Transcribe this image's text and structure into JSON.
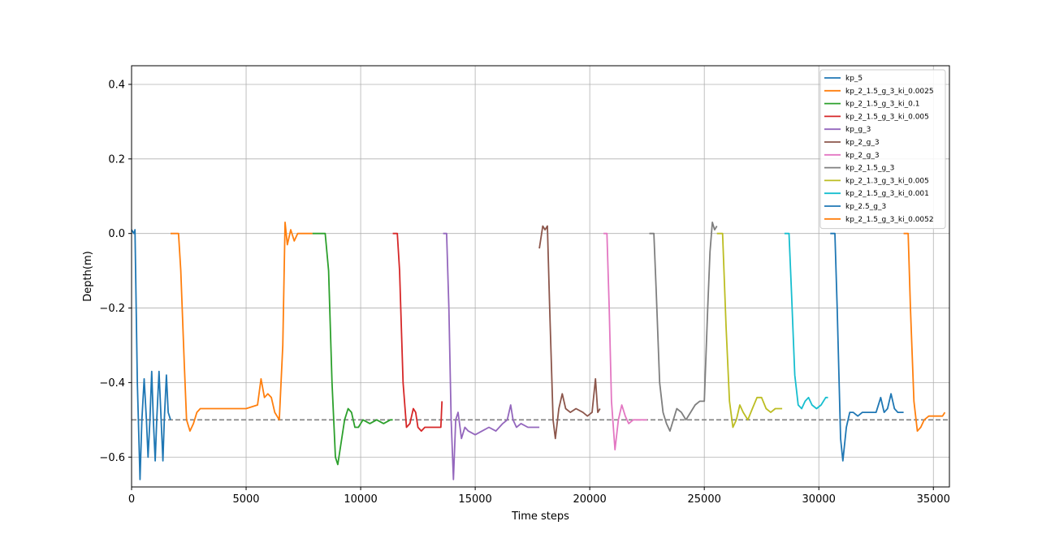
{
  "chart_data": {
    "type": "line",
    "title": "",
    "xlabel": "Time steps",
    "ylabel": "Depth(m)",
    "xlim": [
      0,
      35700
    ],
    "ylim": [
      -0.68,
      0.45
    ],
    "xticks": [
      0,
      5000,
      10000,
      15000,
      20000,
      25000,
      30000,
      35000
    ],
    "yticks": [
      0.4,
      0.2,
      0.0,
      -0.2,
      -0.4,
      -0.6
    ],
    "xtick_labels": [
      "0",
      "5000",
      "10000",
      "15000",
      "20000",
      "25000",
      "30000",
      "35000"
    ],
    "ytick_labels": [
      "0.4",
      "0.2",
      "0.0",
      "−0.2",
      "−0.4",
      "−0.6"
    ],
    "grid": true,
    "legend_position": "top-right",
    "reference_line": {
      "y": -0.5,
      "style": "dashed",
      "color": "#808080"
    },
    "series": [
      {
        "name": "kp_5",
        "color": "#1f77b4",
        "points": [
          [
            0,
            0.01
          ],
          [
            100,
            0.0
          ],
          [
            150,
            0.01
          ],
          [
            250,
            -0.4
          ],
          [
            370,
            -0.66
          ],
          [
            450,
            -0.5
          ],
          [
            550,
            -0.39
          ],
          [
            650,
            -0.5
          ],
          [
            720,
            -0.6
          ],
          [
            800,
            -0.5
          ],
          [
            880,
            -0.37
          ],
          [
            950,
            -0.5
          ],
          [
            1030,
            -0.61
          ],
          [
            1100,
            -0.5
          ],
          [
            1200,
            -0.37
          ],
          [
            1290,
            -0.5
          ],
          [
            1370,
            -0.61
          ],
          [
            1430,
            -0.5
          ],
          [
            1520,
            -0.38
          ],
          [
            1600,
            -0.48
          ],
          [
            1700,
            -0.5
          ]
        ]
      },
      {
        "name": "kp_2_1.5_g_3_ki_0.0025",
        "color": "#ff7f0e",
        "points": [
          [
            1700,
            0.0
          ],
          [
            1850,
            0.0
          ],
          [
            2050,
            0.0
          ],
          [
            2150,
            -0.1
          ],
          [
            2300,
            -0.35
          ],
          [
            2400,
            -0.5
          ],
          [
            2550,
            -0.53
          ],
          [
            2700,
            -0.51
          ],
          [
            2850,
            -0.48
          ],
          [
            3000,
            -0.47
          ],
          [
            3500,
            -0.47
          ],
          [
            4000,
            -0.47
          ],
          [
            4500,
            -0.47
          ],
          [
            5000,
            -0.47
          ],
          [
            5500,
            -0.46
          ],
          [
            5650,
            -0.39
          ],
          [
            5800,
            -0.44
          ],
          [
            5950,
            -0.43
          ],
          [
            6100,
            -0.44
          ],
          [
            6250,
            -0.48
          ],
          [
            6450,
            -0.5
          ],
          [
            6600,
            -0.3
          ],
          [
            6700,
            0.03
          ],
          [
            6800,
            -0.03
          ],
          [
            6950,
            0.01
          ],
          [
            7100,
            -0.02
          ],
          [
            7250,
            0.0
          ],
          [
            7500,
            0.0
          ],
          [
            7700,
            0.0
          ],
          [
            7900,
            0.0
          ]
        ]
      },
      {
        "name": "kp_2_1.5_g_3_ki_0.1",
        "color": "#2ca02c",
        "points": [
          [
            7900,
            0.0
          ],
          [
            8200,
            0.0
          ],
          [
            8450,
            0.0
          ],
          [
            8600,
            -0.1
          ],
          [
            8750,
            -0.4
          ],
          [
            8900,
            -0.6
          ],
          [
            9000,
            -0.62
          ],
          [
            9150,
            -0.56
          ],
          [
            9300,
            -0.5
          ],
          [
            9450,
            -0.47
          ],
          [
            9600,
            -0.48
          ],
          [
            9750,
            -0.52
          ],
          [
            9900,
            -0.52
          ],
          [
            10100,
            -0.5
          ],
          [
            10400,
            -0.51
          ],
          [
            10700,
            -0.5
          ],
          [
            11000,
            -0.51
          ],
          [
            11300,
            -0.5
          ],
          [
            11400,
            -0.5
          ]
        ]
      },
      {
        "name": "kp_2_1.5_g_3_ki_0.005",
        "color": "#d62728",
        "points": [
          [
            11400,
            0.0
          ],
          [
            11600,
            0.0
          ],
          [
            11700,
            -0.1
          ],
          [
            11850,
            -0.4
          ],
          [
            12000,
            -0.52
          ],
          [
            12150,
            -0.51
          ],
          [
            12300,
            -0.47
          ],
          [
            12400,
            -0.48
          ],
          [
            12500,
            -0.52
          ],
          [
            12650,
            -0.53
          ],
          [
            12800,
            -0.52
          ],
          [
            13000,
            -0.52
          ],
          [
            13300,
            -0.52
          ],
          [
            13500,
            -0.52
          ],
          [
            13550,
            -0.45
          ]
        ]
      },
      {
        "name": "kp_g_3",
        "color": "#9467bd",
        "points": [
          [
            13600,
            0.0
          ],
          [
            13750,
            0.0
          ],
          [
            13850,
            -0.2
          ],
          [
            13950,
            -0.5
          ],
          [
            14050,
            -0.66
          ],
          [
            14150,
            -0.5
          ],
          [
            14250,
            -0.48
          ],
          [
            14400,
            -0.55
          ],
          [
            14550,
            -0.52
          ],
          [
            14700,
            -0.53
          ],
          [
            15000,
            -0.54
          ],
          [
            15300,
            -0.53
          ],
          [
            15600,
            -0.52
          ],
          [
            15900,
            -0.53
          ],
          [
            16200,
            -0.51
          ],
          [
            16400,
            -0.5
          ],
          [
            16550,
            -0.46
          ],
          [
            16650,
            -0.5
          ],
          [
            16800,
            -0.52
          ],
          [
            17000,
            -0.51
          ],
          [
            17300,
            -0.52
          ],
          [
            17600,
            -0.52
          ],
          [
            17800,
            -0.52
          ]
        ]
      },
      {
        "name": "kp_2_g_3",
        "color": "#8c564b",
        "points": [
          [
            17800,
            -0.04
          ],
          [
            17950,
            0.02
          ],
          [
            18050,
            0.01
          ],
          [
            18150,
            0.02
          ],
          [
            18250,
            -0.2
          ],
          [
            18400,
            -0.5
          ],
          [
            18500,
            -0.55
          ],
          [
            18650,
            -0.47
          ],
          [
            18800,
            -0.43
          ],
          [
            18950,
            -0.47
          ],
          [
            19150,
            -0.48
          ],
          [
            19400,
            -0.47
          ],
          [
            19700,
            -0.48
          ],
          [
            19900,
            -0.49
          ],
          [
            20100,
            -0.48
          ],
          [
            20250,
            -0.39
          ],
          [
            20350,
            -0.48
          ],
          [
            20450,
            -0.47
          ]
        ]
      },
      {
        "name": "kp_2_g_3",
        "color": "#e377c2",
        "points": [
          [
            20600,
            0.0
          ],
          [
            20750,
            0.0
          ],
          [
            20850,
            -0.2
          ],
          [
            20950,
            -0.45
          ],
          [
            21100,
            -0.58
          ],
          [
            21250,
            -0.5
          ],
          [
            21400,
            -0.46
          ],
          [
            21550,
            -0.49
          ],
          [
            21700,
            -0.51
          ],
          [
            21900,
            -0.5
          ],
          [
            22100,
            -0.5
          ],
          [
            22300,
            -0.5
          ],
          [
            22500,
            -0.5
          ]
        ]
      },
      {
        "name": "kp_2_1.5_g_3",
        "color": "#7f7f7f",
        "points": [
          [
            22600,
            0.0
          ],
          [
            22800,
            0.0
          ],
          [
            22900,
            -0.15
          ],
          [
            23050,
            -0.4
          ],
          [
            23200,
            -0.48
          ],
          [
            23350,
            -0.51
          ],
          [
            23500,
            -0.53
          ],
          [
            23650,
            -0.5
          ],
          [
            23800,
            -0.47
          ],
          [
            24000,
            -0.48
          ],
          [
            24200,
            -0.5
          ],
          [
            24400,
            -0.48
          ],
          [
            24600,
            -0.46
          ],
          [
            24800,
            -0.45
          ],
          [
            25000,
            -0.45
          ],
          [
            25150,
            -0.2
          ],
          [
            25250,
            -0.05
          ],
          [
            25350,
            0.03
          ],
          [
            25450,
            0.01
          ],
          [
            25550,
            0.02
          ]
        ]
      },
      {
        "name": "kp_2_1.3_g_3_ki_0.005",
        "color": "#bcbd22",
        "points": [
          [
            25550,
            0.0
          ],
          [
            25800,
            0.0
          ],
          [
            25950,
            -0.25
          ],
          [
            26100,
            -0.45
          ],
          [
            26250,
            -0.52
          ],
          [
            26400,
            -0.5
          ],
          [
            26550,
            -0.46
          ],
          [
            26700,
            -0.48
          ],
          [
            26900,
            -0.5
          ],
          [
            27100,
            -0.47
          ],
          [
            27300,
            -0.44
          ],
          [
            27500,
            -0.44
          ],
          [
            27700,
            -0.47
          ],
          [
            27900,
            -0.48
          ],
          [
            28100,
            -0.47
          ],
          [
            28300,
            -0.47
          ],
          [
            28400,
            -0.47
          ]
        ]
      },
      {
        "name": "kp_2_1.5_g_3_ki_0.001",
        "color": "#17becf",
        "points": [
          [
            28500,
            0.0
          ],
          [
            28700,
            0.0
          ],
          [
            28800,
            -0.15
          ],
          [
            28950,
            -0.38
          ],
          [
            29100,
            -0.46
          ],
          [
            29250,
            -0.47
          ],
          [
            29400,
            -0.45
          ],
          [
            29550,
            -0.44
          ],
          [
            29700,
            -0.46
          ],
          [
            29900,
            -0.47
          ],
          [
            30100,
            -0.46
          ],
          [
            30300,
            -0.44
          ],
          [
            30400,
            -0.44
          ]
        ]
      },
      {
        "name": "kp_2.5_g_3",
        "color": "#1f77b4",
        "points": [
          [
            30500,
            0.0
          ],
          [
            30700,
            0.0
          ],
          [
            30800,
            -0.2
          ],
          [
            30950,
            -0.55
          ],
          [
            31050,
            -0.61
          ],
          [
            31200,
            -0.52
          ],
          [
            31350,
            -0.48
          ],
          [
            31500,
            -0.48
          ],
          [
            31700,
            -0.49
          ],
          [
            31900,
            -0.48
          ],
          [
            32200,
            -0.48
          ],
          [
            32500,
            -0.48
          ],
          [
            32700,
            -0.44
          ],
          [
            32850,
            -0.48
          ],
          [
            33000,
            -0.47
          ],
          [
            33150,
            -0.43
          ],
          [
            33300,
            -0.47
          ],
          [
            33450,
            -0.48
          ],
          [
            33600,
            -0.48
          ],
          [
            33700,
            -0.48
          ]
        ]
      },
      {
        "name": "kp_2_1.5_g_3_ki_0.0052",
        "color": "#ff7f0e",
        "points": [
          [
            33700,
            0.0
          ],
          [
            33900,
            0.0
          ],
          [
            34000,
            -0.2
          ],
          [
            34150,
            -0.45
          ],
          [
            34300,
            -0.53
          ],
          [
            34450,
            -0.52
          ],
          [
            34600,
            -0.5
          ],
          [
            34800,
            -0.49
          ],
          [
            35000,
            -0.49
          ],
          [
            35200,
            -0.49
          ],
          [
            35400,
            -0.49
          ],
          [
            35500,
            -0.48
          ]
        ]
      }
    ]
  }
}
